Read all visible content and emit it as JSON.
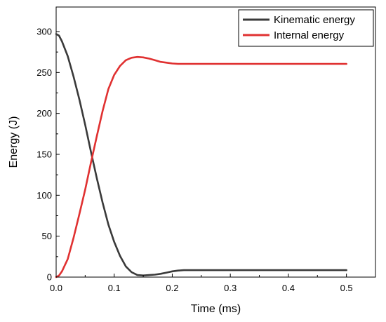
{
  "chart_data": {
    "type": "line",
    "xlabel": "Time (ms)",
    "ylabel": "Energy (J)",
    "xlim": [
      0,
      0.55
    ],
    "ylim": [
      0,
      330
    ],
    "xticks": [
      "0.0",
      "0.1",
      "0.2",
      "0.3",
      "0.4",
      "0.5"
    ],
    "yticks": [
      "0",
      "50",
      "100",
      "150",
      "200",
      "250",
      "300"
    ],
    "grid": false,
    "legend_position": "top-right",
    "series": [
      {
        "name": "Kinematic energy",
        "color": "#3a3a3a",
        "x": [
          0,
          0.005,
          0.01,
          0.02,
          0.03,
          0.04,
          0.05,
          0.06,
          0.07,
          0.08,
          0.09,
          0.1,
          0.11,
          0.12,
          0.13,
          0.14,
          0.15,
          0.16,
          0.17,
          0.18,
          0.19,
          0.2,
          0.21,
          0.22,
          0.25,
          0.3,
          0.35,
          0.4,
          0.45,
          0.5
        ],
        "y": [
          297,
          295,
          288,
          270,
          245,
          217,
          186,
          153,
          121,
          91,
          64,
          43,
          26,
          13,
          6,
          2.5,
          2,
          2.5,
          3,
          4,
          5.5,
          7,
          8,
          8.5,
          8.5,
          8.5,
          8.5,
          8.5,
          8.5,
          8.5
        ]
      },
      {
        "name": "Internal energy",
        "color": "#e03131",
        "x": [
          0,
          0.005,
          0.01,
          0.02,
          0.03,
          0.04,
          0.05,
          0.06,
          0.07,
          0.08,
          0.09,
          0.1,
          0.11,
          0.12,
          0.13,
          0.14,
          0.15,
          0.16,
          0.17,
          0.18,
          0.19,
          0.2,
          0.21,
          0.22,
          0.25,
          0.3,
          0.35,
          0.4,
          0.45,
          0.5
        ],
        "y": [
          0,
          2,
          7,
          22,
          48,
          77,
          107,
          140,
          172,
          203,
          230,
          247,
          258,
          265,
          268,
          269,
          268.5,
          267,
          265,
          263,
          262,
          261,
          260.5,
          260.5,
          260.5,
          260.5,
          260.5,
          260.5,
          260.5,
          260.5
        ]
      }
    ]
  }
}
